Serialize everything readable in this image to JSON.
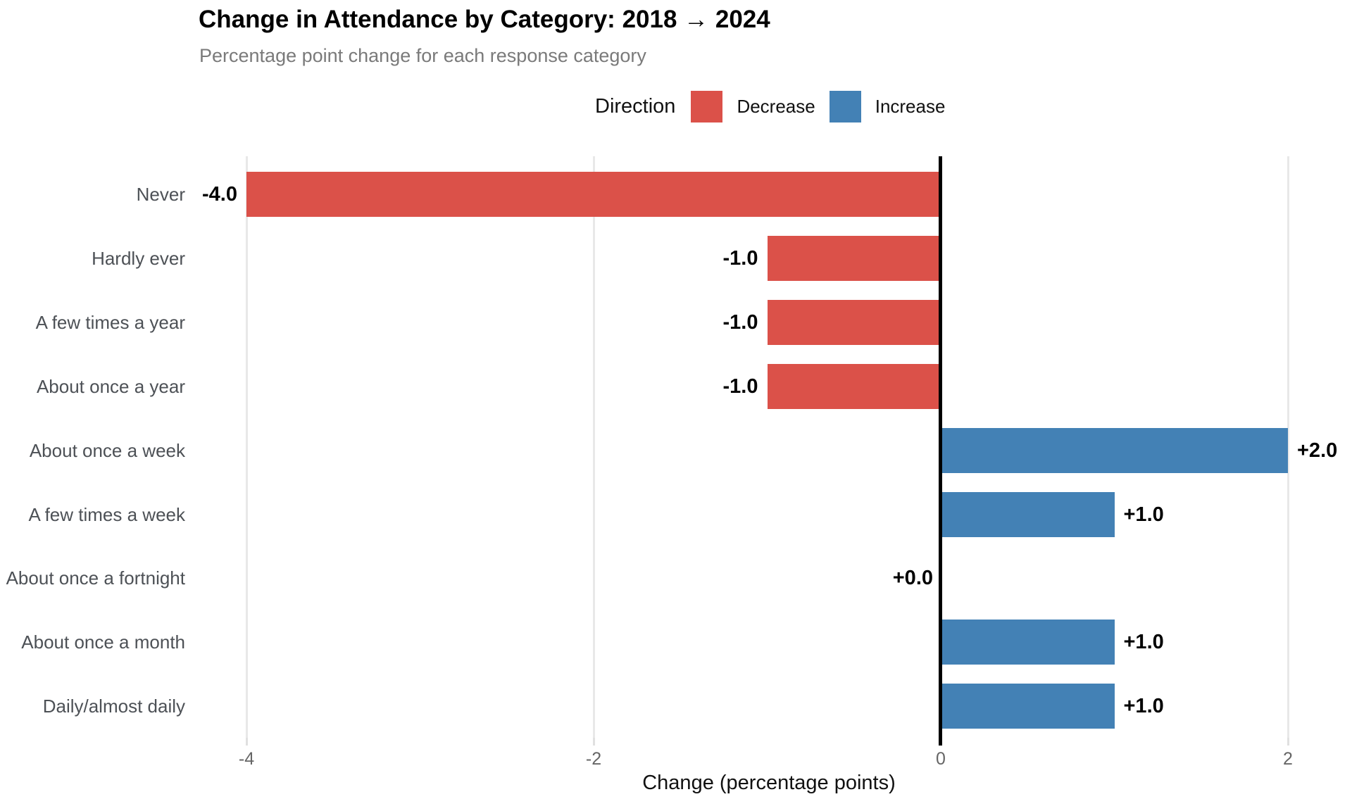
{
  "chart_data": {
    "type": "bar",
    "orientation": "horizontal",
    "title": "Change in Attendance by Category: 2018 → 2024",
    "subtitle": "Percentage point change for each response category",
    "xlabel": "Change (percentage points)",
    "categories": [
      "Never",
      "Hardly ever",
      "A few times a year",
      "About once a year",
      "About once a week",
      "A few times a week",
      "About once a fortnight",
      "About once a month",
      "Daily/almost daily"
    ],
    "values": [
      -4.0,
      -1.0,
      -1.0,
      -1.0,
      2.0,
      1.0,
      0.0,
      1.0,
      1.0
    ],
    "value_labels": [
      "-4.0",
      "-1.0",
      "-1.0",
      "-1.0",
      "+2.0",
      "+1.0",
      "+0.0",
      "+1.0",
      "+1.0"
    ],
    "directions": [
      "decrease",
      "decrease",
      "decrease",
      "decrease",
      "increase",
      "increase",
      "none",
      "increase",
      "increase"
    ],
    "colors": {
      "decrease": "#db5149",
      "increase": "#4381b5",
      "zero_line": "#000000",
      "gridline": "#e8e8e8"
    },
    "x_ticks": [
      {
        "value": -4,
        "label": "-4"
      },
      {
        "value": -2,
        "label": "-2"
      },
      {
        "value": 0,
        "label": "0"
      },
      {
        "value": 2,
        "label": "2"
      }
    ],
    "xlim": [
      -4.05,
      2.1
    ],
    "grid": "vertical-major-only",
    "legend": {
      "title": "Direction",
      "position": "top",
      "items": [
        {
          "label": "Decrease",
          "key": "decrease"
        },
        {
          "label": "Increase",
          "key": "increase"
        }
      ]
    }
  }
}
